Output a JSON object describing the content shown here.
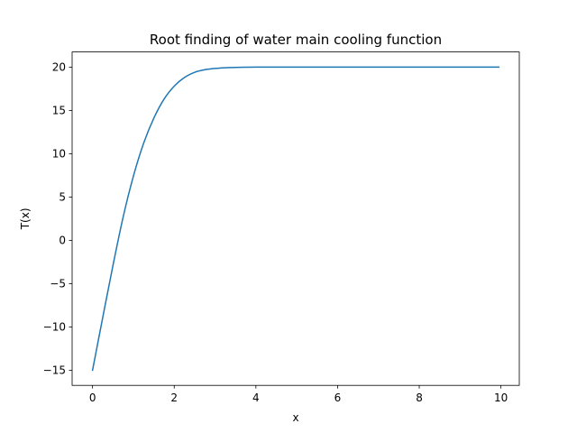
{
  "chart_data": {
    "type": "line",
    "title": "Root finding of water main cooling function",
    "xlabel": "x",
    "ylabel": "T(x)",
    "xlim": [
      -0.5,
      10.45
    ],
    "ylim": [
      -16.75,
      21.75
    ],
    "x_ticks": [
      0,
      2,
      4,
      6,
      8,
      10
    ],
    "y_ticks": [
      -15,
      -10,
      -5,
      0,
      5,
      10,
      15,
      20
    ],
    "x_tick_labels": [
      "0",
      "2",
      "4",
      "6",
      "8",
      "10"
    ],
    "y_tick_labels": [
      "−15",
      "−10",
      "−5",
      "0",
      "5",
      "10",
      "15",
      "20"
    ],
    "grid": false,
    "legend": "none",
    "series": [
      {
        "color": "#1f77b4",
        "x": [
          0,
          0.25,
          0.5,
          0.75,
          1.0,
          1.25,
          1.5,
          1.75,
          2.0,
          2.25,
          2.5,
          2.75,
          3.0,
          3.25,
          3.5,
          3.75,
          4.0,
          4.5,
          5.0,
          5.5,
          6.0,
          6.5,
          7.0,
          7.5,
          8.0,
          8.5,
          9.0,
          9.5,
          9.95
        ],
        "y": [
          -15.0,
          -8.9,
          -2.9,
          2.7,
          7.4,
          11.2,
          14.1,
          16.3,
          17.8,
          18.8,
          19.4,
          19.7,
          19.85,
          19.93,
          19.97,
          19.99,
          20.0,
          20.0,
          20.0,
          20.0,
          20.0,
          20.0,
          20.0,
          20.0,
          20.0,
          20.0,
          20.0,
          20.0,
          20.0
        ]
      }
    ]
  }
}
